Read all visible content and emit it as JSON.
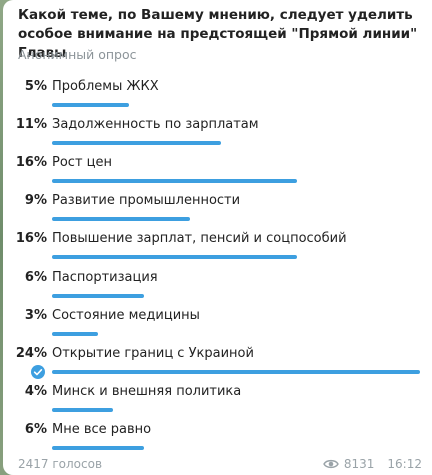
{
  "poll": {
    "question": "Какой теме, по Вашему мнению, следует уделить особое внимание на предстоящей \"Прямой линии\" Главы",
    "type_label": "Анонимный опрос",
    "options": [
      {
        "percent": "5%",
        "label": "Проблемы ЖКХ",
        "share": 5
      },
      {
        "percent": "11%",
        "label": "Задолженность по зарплатам",
        "share": 11
      },
      {
        "percent": "16%",
        "label": "Рост цен",
        "share": 16
      },
      {
        "percent": "9%",
        "label": "Развитие промышленности",
        "share": 9
      },
      {
        "percent": "16%",
        "label": "Повышение зарплат, пенсий и соцпособий",
        "share": 16
      },
      {
        "percent": "6%",
        "label": "Паспортизация",
        "share": 6
      },
      {
        "percent": "3%",
        "label": "Состояние медицины",
        "share": 3
      },
      {
        "percent": "24%",
        "label": "Открытие границ с Украиной",
        "share": 24,
        "chosen": true
      },
      {
        "percent": "4%",
        "label": "Минск и внешняя политика",
        "share": 4
      },
      {
        "percent": "6%",
        "label": "Мне все равно",
        "share": 6
      }
    ],
    "votes_label": "2417 голосов",
    "views": "8131",
    "time": "16:12"
  },
  "colors": {
    "accent": "#3d9fe0",
    "text": "#222222",
    "muted": "#8c9499"
  },
  "icons": {
    "views": "eye-icon",
    "chosen": "checkmark-circle-icon"
  }
}
